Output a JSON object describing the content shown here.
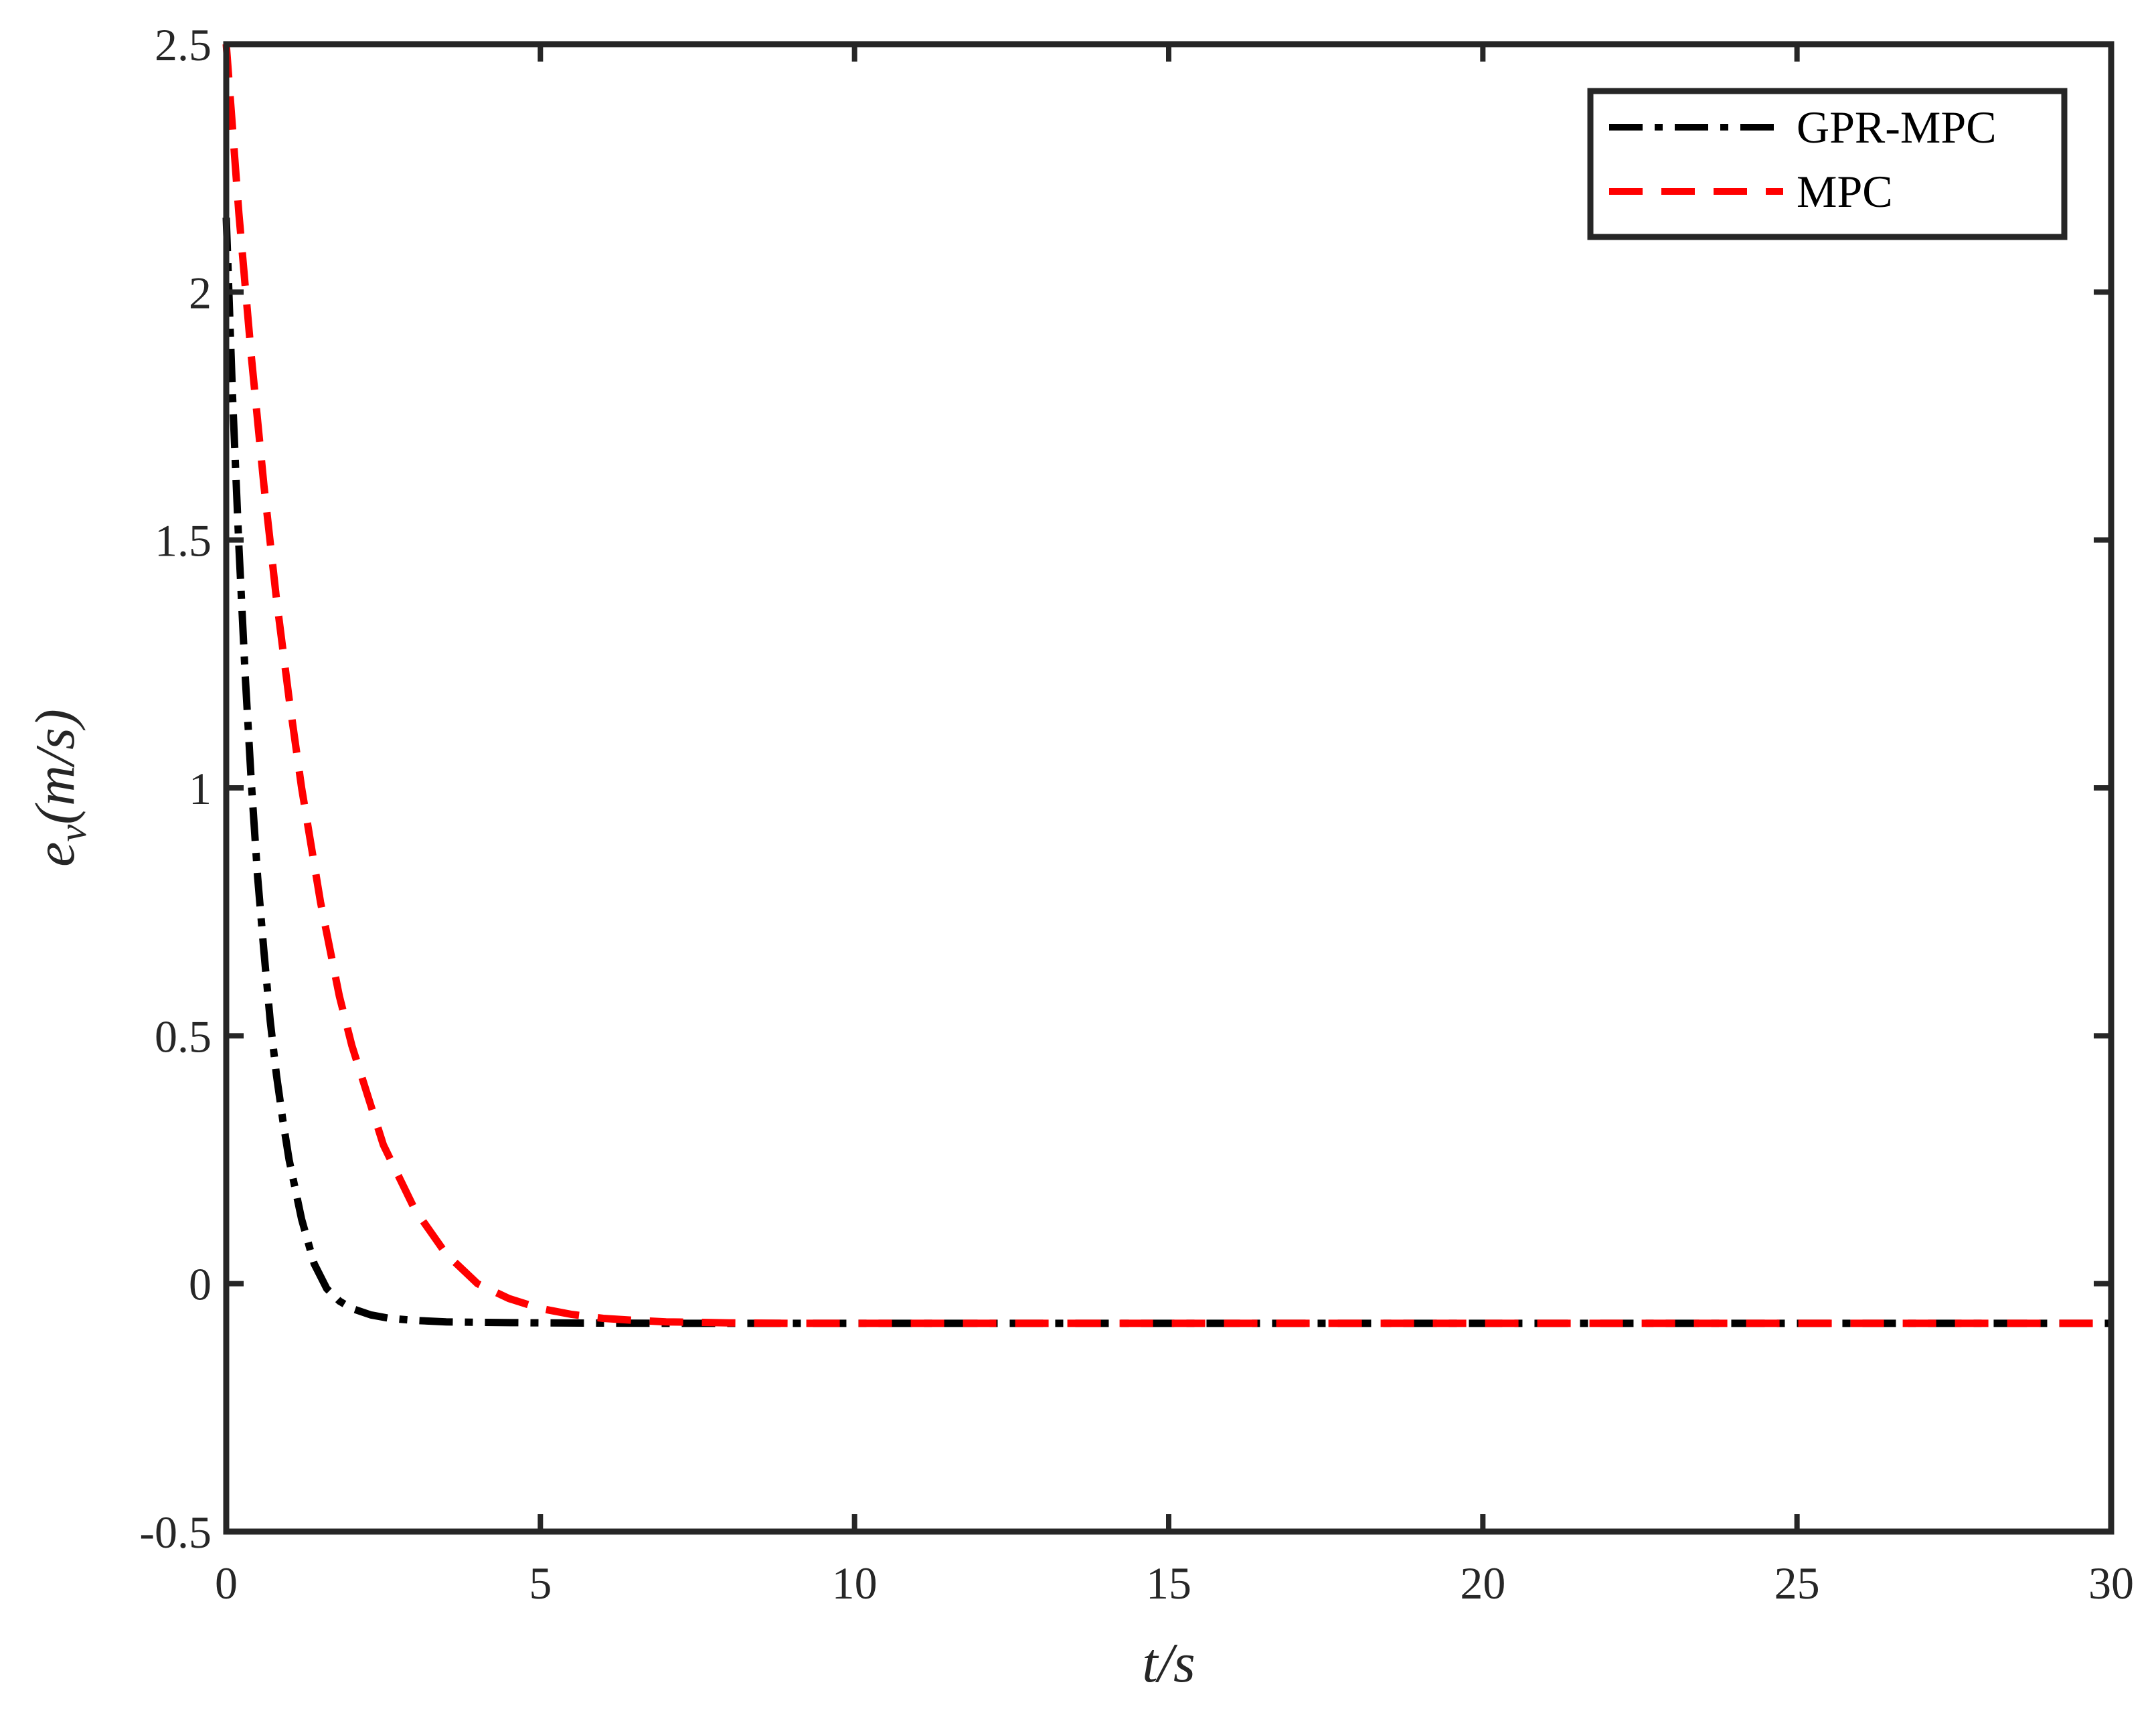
{
  "chart_data": {
    "type": "line",
    "title": "",
    "xlabel": "t/s",
    "ylabel": "e_v(m/s)",
    "ylabel_parts": {
      "main": "e",
      "sub": "v",
      "rest": "(m/s)"
    },
    "xlim": [
      0,
      30
    ],
    "ylim": [
      -0.5,
      2.5
    ],
    "xticks": [
      0,
      5,
      10,
      15,
      20,
      25,
      30
    ],
    "yticks": [
      -0.5,
      0,
      0.5,
      1,
      1.5,
      2,
      2.5
    ],
    "xtick_labels": [
      "0",
      "5",
      "10",
      "15",
      "20",
      "25",
      "30"
    ],
    "ytick_labels": [
      "-0.5",
      "0",
      "0.5",
      "1",
      "1.5",
      "2",
      "2.5"
    ],
    "grid": false,
    "legend_position": "top-right",
    "series": [
      {
        "name": "GPR-MPC",
        "color": "#000000",
        "style": "dash-dot",
        "x": [
          0,
          0.1,
          0.2,
          0.3,
          0.4,
          0.5,
          0.6,
          0.7,
          0.8,
          0.9,
          1.0,
          1.2,
          1.4,
          1.6,
          1.8,
          2.0,
          2.3,
          2.6,
          3.0,
          3.5,
          4.0,
          5.0,
          7.0,
          10.0,
          15.0,
          20.0,
          25.0,
          30.0
        ],
        "y": [
          2.15,
          1.79,
          1.49,
          1.23,
          1.01,
          0.82,
          0.67,
          0.53,
          0.42,
          0.33,
          0.25,
          0.13,
          0.04,
          -0.01,
          -0.035,
          -0.05,
          -0.063,
          -0.07,
          -0.074,
          -0.077,
          -0.078,
          -0.079,
          -0.08,
          -0.08,
          -0.08,
          -0.08,
          -0.08,
          -0.08
        ]
      },
      {
        "name": "MPC",
        "color": "#ff0000",
        "style": "dashed",
        "x": [
          0,
          0.2,
          0.4,
          0.6,
          0.8,
          1.0,
          1.2,
          1.5,
          1.8,
          2.0,
          2.5,
          3.0,
          3.5,
          4.0,
          4.5,
          5.0,
          5.5,
          6.0,
          6.5,
          7.0,
          8.0,
          9.0,
          10.0,
          15.0,
          20.0,
          25.0,
          30.0
        ],
        "y": [
          2.5,
          2.16,
          1.87,
          1.61,
          1.38,
          1.18,
          1.0,
          0.77,
          0.58,
          0.48,
          0.28,
          0.15,
          0.06,
          0.0,
          -0.03,
          -0.05,
          -0.062,
          -0.07,
          -0.074,
          -0.077,
          -0.079,
          -0.08,
          -0.08,
          -0.08,
          -0.08,
          -0.08,
          -0.08
        ]
      }
    ]
  }
}
